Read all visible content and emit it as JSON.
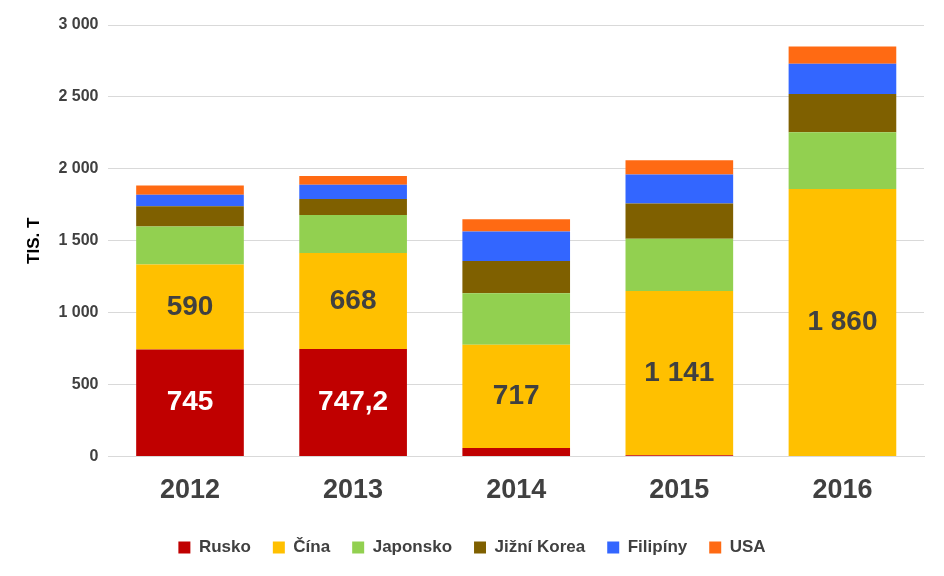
{
  "chart_data": {
    "type": "bar",
    "stacked": true,
    "grid": true,
    "legend": "bottom",
    "data_labels": true,
    "y_label": "TIS. T",
    "categories": [
      "2012",
      "2013",
      "2014",
      "2015",
      "2016"
    ],
    "ylim": [
      0,
      3000
    ],
    "yticks": [
      0,
      500,
      {
        "value": 1000,
        "label": "1 000"
      },
      {
        "value": 1500,
        "label": "1 500"
      },
      {
        "value": 2000,
        "label": "2 000"
      },
      {
        "value": 2500,
        "label": "2 500"
      },
      {
        "value": 3000,
        "label": "3 000"
      }
    ],
    "series": [
      {
        "name": "Rusko",
        "color": "#c00000",
        "values": [
          745,
          747.2,
          60,
          10,
          0
        ],
        "value_labels": [
          "745",
          "747,2",
          null,
          null,
          null
        ]
      },
      {
        "name": "Čína",
        "color": "#ffc000",
        "values": [
          590,
          668,
          717,
          1141,
          1860
        ],
        "value_labels": [
          "590",
          "668",
          "717",
          "1 141",
          "1 860"
        ]
      },
      {
        "name": "Japonsko",
        "color": "#92d050",
        "values": [
          265,
          265,
          358,
          364,
          395
        ]
      },
      {
        "name": "Jižní Korea",
        "color": "#7f6000",
        "values": [
          140,
          110,
          225,
          245,
          265
        ]
      },
      {
        "name": "Filipíny",
        "color": "#3366ff",
        "values": [
          80,
          100,
          205,
          200,
          210
        ]
      },
      {
        "name": "USA",
        "color": "#ff6a13",
        "values": [
          65,
          60,
          85,
          100,
          120
        ]
      }
    ]
  }
}
